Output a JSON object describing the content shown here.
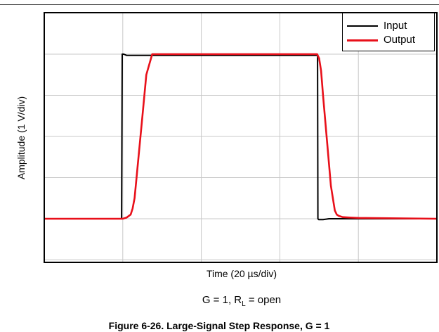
{
  "chart_data": {
    "type": "line",
    "xlabel": "Time (20 µs/div)",
    "ylabel": "Amplitude (1 V/div)",
    "condition": {
      "prefix": "G = 1, R",
      "subscript": "L",
      "suffix": " = open"
    },
    "caption": "Figure 6-26. Large-Signal Step Response, G = 1",
    "xlim": [
      0,
      200
    ],
    "ylim": [
      -4,
      1
    ],
    "grid": true,
    "legend_position": "top-right",
    "series": [
      {
        "name": "Input",
        "color": "#000000",
        "x": [
          0,
          39.4,
          39.7,
          40.5,
          42,
          45,
          60,
          80,
          100,
          120,
          139.2,
          139.4,
          139.8,
          142,
          145,
          160,
          200
        ],
        "y": [
          -4,
          -4,
          0,
          0,
          -0.03,
          -0.03,
          -0.03,
          -0.03,
          -0.03,
          -0.03,
          -0.03,
          -4,
          -4.02,
          -4.02,
          -4,
          -4,
          -4
        ]
      },
      {
        "name": "Output",
        "color": "#e8101a",
        "x": [
          0,
          40,
          42,
          44,
          45,
          46,
          48,
          50,
          52,
          55,
          60,
          80,
          100,
          120,
          139,
          140,
          141,
          142,
          144,
          146,
          148,
          149,
          150,
          152,
          155,
          160,
          200
        ],
        "y": [
          -4,
          -4,
          -3.97,
          -3.9,
          -3.75,
          -3.5,
          -2.5,
          -1.5,
          -0.5,
          0,
          0,
          0,
          0,
          0,
          0,
          -0.1,
          -0.4,
          -1.0,
          -2.1,
          -3.2,
          -3.8,
          -3.9,
          -3.93,
          -3.96,
          -3.97,
          -3.98,
          -4
        ]
      }
    ]
  }
}
